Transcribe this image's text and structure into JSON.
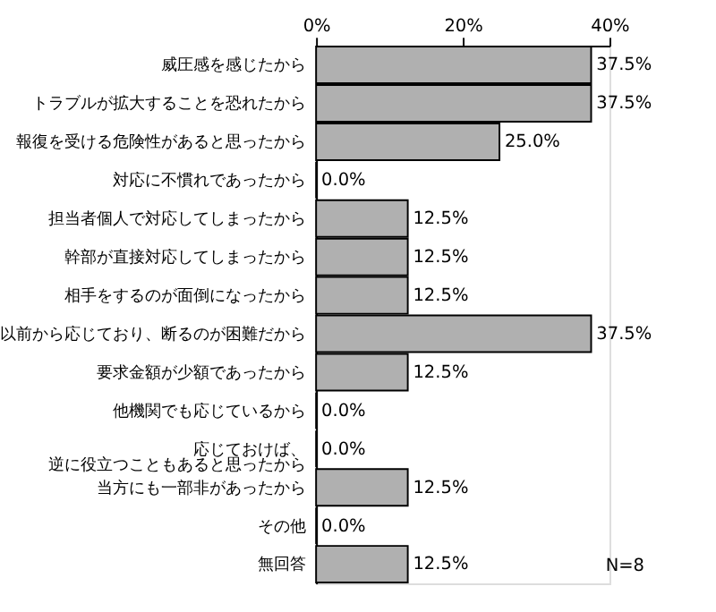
{
  "chart_data": {
    "type": "bar",
    "orientation": "horizontal",
    "categories": [
      "威圧感を感じたから",
      "トラブルが拡大することを恐れたから",
      "報復を受ける危険性があると思ったから",
      "対応に不慣れであったから",
      "担当者個人で対応してしまったから",
      "幹部が直接対応してしまったから",
      "相手をするのが面倒になったから",
      "以前から応じており、断るのが困難だから",
      "要求金額が少額であったから",
      "他機関でも応じているから",
      "応じておけば、逆に役立つこともあると思ったから",
      "当方にも一部非があったから",
      "その他",
      "無回答"
    ],
    "values": [
      37.5,
      37.5,
      25.0,
      0.0,
      12.5,
      12.5,
      12.5,
      37.5,
      12.5,
      0.0,
      0.0,
      12.5,
      0.0,
      12.5
    ],
    "value_labels": [
      "37.5%",
      "37.5%",
      "25.0%",
      "0.0%",
      "12.5%",
      "12.5%",
      "12.5%",
      "37.5%",
      "12.5%",
      "0.0%",
      "0.0%",
      "12.5%",
      "0.0%",
      "12.5%"
    ],
    "color": "#b0b0b0",
    "xlim": [
      0,
      40
    ],
    "xticks": [
      {
        "value": 0,
        "label": "0%"
      },
      {
        "value": 20,
        "label": "20%"
      },
      {
        "value": 40,
        "label": "40%"
      }
    ],
    "grid": false,
    "annotations": [
      "N=8"
    ]
  }
}
